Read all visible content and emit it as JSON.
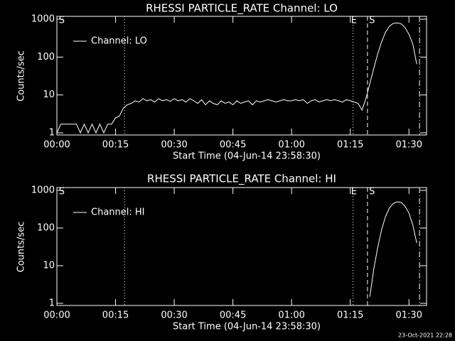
{
  "chart_data": [
    {
      "type": "line",
      "title": "RHESSI PARTICLE_RATE Channel: LO",
      "xlabel": "Start Time (04-Jun-14 23:58:30)",
      "ylabel": "Counts/sec",
      "ylog": true,
      "legend": "upper left",
      "xlim": [
        0,
        94.5
      ],
      "xticks": [
        {
          "value": 0,
          "label": "00:00"
        },
        {
          "value": 15,
          "label": "00:15"
        },
        {
          "value": 30,
          "label": "00:30"
        },
        {
          "value": 45,
          "label": "00:45"
        },
        {
          "value": 60,
          "label": "01:00"
        },
        {
          "value": 75,
          "label": "01:15"
        },
        {
          "value": 90,
          "label": "01:30"
        }
      ],
      "ylim": [
        1,
        1000
      ],
      "yticks": [
        1,
        10,
        100,
        1000
      ],
      "x": [
        0,
        1,
        2,
        3,
        4,
        5,
        6,
        7,
        8,
        9,
        10,
        11,
        12,
        13,
        14,
        15,
        16,
        17,
        18,
        19,
        20,
        21,
        22,
        23,
        24,
        25,
        26,
        27,
        28,
        29,
        30,
        31,
        32,
        33,
        34,
        35,
        36,
        37,
        38,
        39,
        40,
        41,
        42,
        43,
        44,
        45,
        46,
        47,
        48,
        49,
        50,
        51,
        52,
        53,
        54,
        55,
        56,
        57,
        58,
        59,
        60,
        61,
        62,
        63,
        64,
        65,
        66,
        67,
        68,
        69,
        70,
        71,
        72,
        73,
        74,
        75,
        76,
        77,
        78,
        79,
        80,
        81,
        82,
        83,
        84,
        85,
        86,
        87,
        88,
        89,
        90,
        91,
        92
      ],
      "series": [
        {
          "name": "Channel: LO",
          "color": "#ffffff",
          "values": [
            1,
            1.7,
            1.7,
            1.7,
            1.7,
            1.7,
            1,
            1.7,
            1,
            1.7,
            1,
            1.7,
            1,
            1.7,
            1.7,
            2.5,
            2.8,
            4.5,
            5.5,
            6,
            7,
            6.5,
            8,
            7,
            7.5,
            6.5,
            8,
            7,
            7.5,
            6.8,
            8,
            7,
            7.5,
            6.5,
            8,
            7,
            6,
            7.5,
            5.5,
            7,
            6,
            5.5,
            7,
            6,
            6.5,
            5.5,
            7,
            6,
            6.5,
            7,
            5.5,
            7,
            6.5,
            7,
            7.5,
            7,
            6.5,
            7,
            7.5,
            7,
            7,
            7.5,
            7,
            7.5,
            6,
            7,
            7.5,
            6.5,
            7,
            7.5,
            7,
            7.5,
            7,
            6.5,
            7.5,
            7,
            6.5,
            6,
            4,
            8,
            20,
            50,
            120,
            250,
            450,
            650,
            780,
            800,
            760,
            600,
            400,
            220,
            65
          ]
        }
      ],
      "markers": [
        {
          "x": 17.3,
          "style": "dotted"
        },
        {
          "x": 75.7,
          "style": "dotted"
        },
        {
          "x": 79.4,
          "style": "dashed"
        },
        {
          "x": 92.7,
          "style": "dashdot"
        }
      ],
      "annotations": [
        {
          "text": "S",
          "x": 0.5
        },
        {
          "text": "E",
          "x": 75.2
        },
        {
          "text": "S",
          "x": 79.8
        }
      ]
    },
    {
      "type": "line",
      "title": "RHESSI PARTICLE_RATE Channel: HI",
      "xlabel": "Start Time (04-Jun-14 23:58:30)",
      "ylabel": "Counts/sec",
      "ylog": true,
      "legend": "upper left",
      "xlim": [
        0,
        94.5
      ],
      "xticks": [
        {
          "value": 0,
          "label": "00:00"
        },
        {
          "value": 15,
          "label": "00:15"
        },
        {
          "value": 30,
          "label": "00:30"
        },
        {
          "value": 45,
          "label": "00:45"
        },
        {
          "value": 60,
          "label": "01:00"
        },
        {
          "value": 75,
          "label": "01:15"
        },
        {
          "value": 90,
          "label": "01:30"
        }
      ],
      "ylim": [
        1,
        1000
      ],
      "yticks": [
        1,
        10,
        100,
        1000
      ],
      "x": [
        80,
        81,
        82,
        83,
        84,
        85,
        86,
        87,
        88,
        89,
        90,
        91,
        92
      ],
      "series": [
        {
          "name": "Channel: HI",
          "color": "#ffffff",
          "values": [
            1.5,
            8,
            30,
            90,
            200,
            340,
            450,
            500,
            480,
            380,
            250,
            120,
            40
          ]
        }
      ],
      "markers": [
        {
          "x": 17.3,
          "style": "dotted"
        },
        {
          "x": 75.7,
          "style": "dotted"
        },
        {
          "x": 79.4,
          "style": "dashed"
        },
        {
          "x": 92.7,
          "style": "dashdot"
        }
      ],
      "annotations": [
        {
          "text": "S",
          "x": 0.5
        },
        {
          "text": "E",
          "x": 75.2
        },
        {
          "text": "S",
          "x": 79.8
        }
      ]
    }
  ],
  "footer": "23-Oct-2021 22:28"
}
